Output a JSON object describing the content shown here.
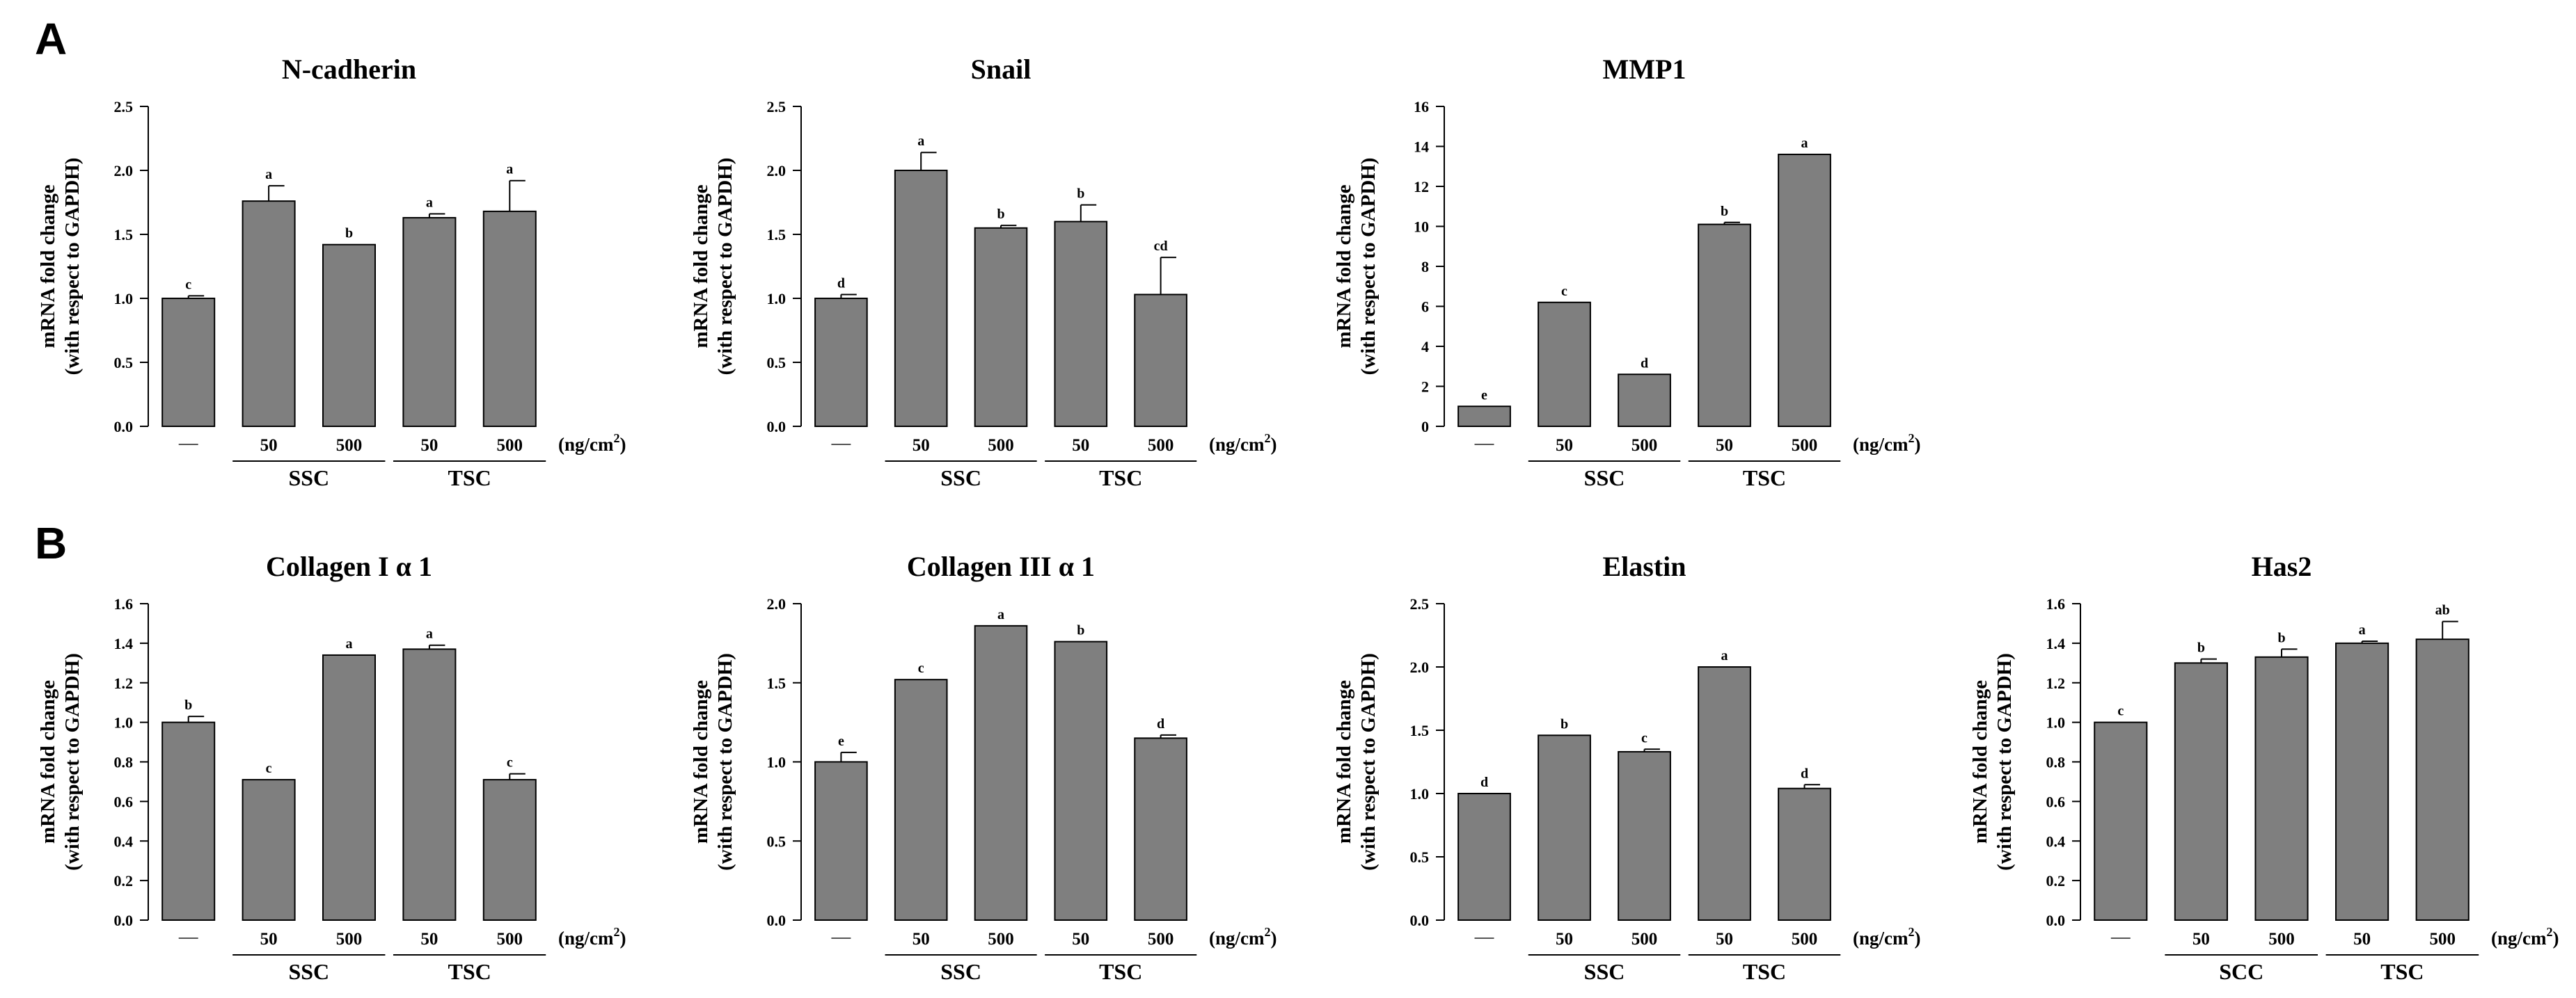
{
  "panel_letters": [
    "A",
    "B"
  ],
  "y_label_line1": "mRNA fold change",
  "y_label_line2": "(with respect to GAPDH)",
  "x_unit": "(ng/cm",
  "x_unit_sup": "2",
  "x_unit_close": ")",
  "colors": {
    "bar": "#7f7f7f",
    "stroke": "#000000"
  },
  "chart_data": [
    {
      "type": "bar",
      "panel": "A",
      "title": "N-cadherin",
      "categories": [
        "—",
        "50",
        "500",
        "50",
        "500"
      ],
      "groups": [
        "SSC",
        "TSC"
      ],
      "values": [
        1.0,
        1.76,
        1.42,
        1.63,
        1.68
      ],
      "errors": [
        0.02,
        0.12,
        0.0,
        0.03,
        0.24
      ],
      "significance": [
        "c",
        "a",
        "b",
        "a",
        "a"
      ],
      "ylim": [
        0,
        2.5
      ],
      "yticks": [
        "0.0",
        "0.5",
        "1.0",
        "1.5",
        "2.0",
        "2.5"
      ],
      "ylabel": "mRNA fold change (with respect to GAPDH)"
    },
    {
      "type": "bar",
      "panel": "A",
      "title": "Snail",
      "categories": [
        "—",
        "50",
        "500",
        "50",
        "500"
      ],
      "groups": [
        "SSC",
        "TSC"
      ],
      "values": [
        1.0,
        2.0,
        1.55,
        1.6,
        1.03
      ],
      "errors": [
        0.03,
        0.14,
        0.02,
        0.13,
        0.29
      ],
      "significance": [
        "d",
        "a",
        "b",
        "b",
        "cd"
      ],
      "ylim": [
        0,
        2.5
      ],
      "yticks": [
        "0.0",
        "0.5",
        "1.0",
        "1.5",
        "2.0",
        "2.5"
      ],
      "ylabel": "mRNA fold change (with respect to GAPDH)"
    },
    {
      "type": "bar",
      "panel": "A",
      "title": "MMP1",
      "categories": [
        "—",
        "50",
        "500",
        "50",
        "500"
      ],
      "groups": [
        "SSC",
        "TSC"
      ],
      "values": [
        1.0,
        6.2,
        2.6,
        10.1,
        13.6
      ],
      "errors": [
        0.0,
        0.0,
        0.0,
        0.1,
        0.0
      ],
      "significance": [
        "e",
        "c",
        "d",
        "b",
        "a"
      ],
      "ylim": [
        0,
        16
      ],
      "yticks": [
        "0",
        "2",
        "4",
        "6",
        "8",
        "10",
        "12",
        "14",
        "16"
      ],
      "ylabel": "mRNA fold change (with respect to GAPDH)"
    },
    {
      "type": "bar",
      "panel": "B",
      "title": "Collagen I α 1",
      "categories": [
        "—",
        "50",
        "500",
        "50",
        "500"
      ],
      "groups": [
        "SSC",
        "TSC"
      ],
      "values": [
        1.0,
        0.71,
        1.34,
        1.37,
        0.71
      ],
      "errors": [
        0.03,
        0.0,
        0.0,
        0.02,
        0.03
      ],
      "significance": [
        "b",
        "c",
        "a",
        "a",
        "c"
      ],
      "ylim": [
        0,
        1.6
      ],
      "yticks": [
        "0.0",
        "0.2",
        "0.4",
        "0.6",
        "0.8",
        "1.0",
        "1.2",
        "1.4",
        "1.6"
      ],
      "ylabel": "mRNA fold change (with respect to GAPDH)"
    },
    {
      "type": "bar",
      "panel": "B",
      "title": "Collagen III α 1",
      "categories": [
        "—",
        "50",
        "500",
        "50",
        "500"
      ],
      "groups": [
        "SSC",
        "TSC"
      ],
      "values": [
        1.0,
        1.52,
        1.86,
        1.76,
        1.15
      ],
      "errors": [
        0.06,
        0.0,
        0.0,
        0.0,
        0.02
      ],
      "significance": [
        "e",
        "c",
        "a",
        "b",
        "d"
      ],
      "ylim": [
        0,
        2.0
      ],
      "yticks": [
        "0.0",
        "0.5",
        "1.0",
        "1.5",
        "2.0"
      ],
      "ylabel": "mRNA fold change (with respect to GAPDH)"
    },
    {
      "type": "bar",
      "panel": "B",
      "title": "Elastin",
      "categories": [
        "—",
        "50",
        "500",
        "50",
        "500"
      ],
      "groups": [
        "SSC",
        "TSC"
      ],
      "values": [
        1.0,
        1.46,
        1.33,
        2.0,
        1.04
      ],
      "errors": [
        0.0,
        0.0,
        0.02,
        0.0,
        0.03
      ],
      "significance": [
        "d",
        "b",
        "c",
        "a",
        "d"
      ],
      "ylim": [
        0,
        2.5
      ],
      "yticks": [
        "0.0",
        "0.5",
        "1.0",
        "1.5",
        "2.0",
        "2.5"
      ],
      "ylabel": "mRNA fold change (with respect to GAPDH)"
    },
    {
      "type": "bar",
      "panel": "B",
      "title": "Has2",
      "categories": [
        "—",
        "50",
        "500",
        "50",
        "500"
      ],
      "groups": [
        "SCC",
        "TSC"
      ],
      "values": [
        1.0,
        1.3,
        1.33,
        1.4,
        1.42
      ],
      "errors": [
        0.0,
        0.02,
        0.04,
        0.01,
        0.09
      ],
      "significance": [
        "c",
        "b",
        "b",
        "a",
        "ab"
      ],
      "ylim": [
        0,
        1.6
      ],
      "yticks": [
        "0.0",
        "0.2",
        "0.4",
        "0.6",
        "0.8",
        "1.0",
        "1.2",
        "1.4",
        "1.6"
      ],
      "ylabel": "mRNA fold change (with respect to GAPDH)"
    }
  ]
}
